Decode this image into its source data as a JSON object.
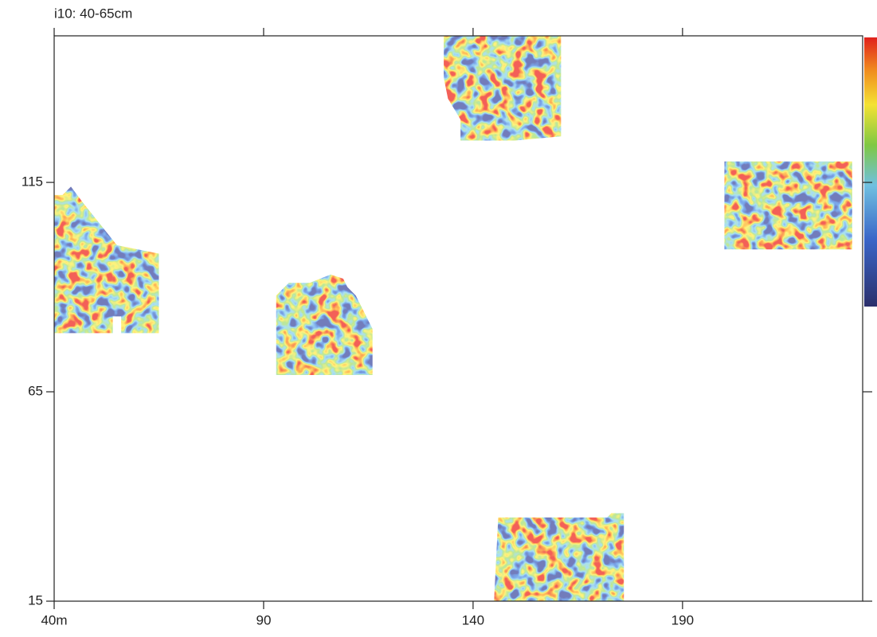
{
  "chart_data": {
    "type": "heatmap",
    "title": "i10: 40-65cm",
    "xlim": [
      40,
      233
    ],
    "ylim": [
      15,
      150
    ],
    "xticks": [
      {
        "value": 40,
        "label": "40m"
      },
      90,
      140,
      190
    ],
    "yticks": [
      15,
      65,
      115
    ],
    "areas": [
      {
        "x": [
          40,
          42,
          44,
          47,
          55,
          65,
          65,
          56,
          56,
          54,
          54,
          40
        ],
        "y": [
          112,
          112,
          114,
          110,
          100,
          98,
          79,
          79,
          83,
          83,
          79,
          79
        ]
      },
      {
        "x": [
          93,
          96,
          101,
          106,
          109,
          110,
          112,
          116,
          116,
          93
        ],
        "y": [
          88,
          91,
          91,
          93,
          92,
          90,
          88,
          80,
          69,
          69
        ]
      },
      {
        "x": [
          133,
          161,
          161,
          150,
          137,
          137,
          134,
          133
        ],
        "y": [
          150,
          150,
          126,
          125,
          125,
          130,
          135,
          140
        ]
      },
      {
        "x": [
          200,
          230.5,
          230.5,
          200
        ],
        "y": [
          120,
          120,
          99,
          99
        ]
      },
      {
        "x": [
          146,
          172,
          173,
          176,
          176,
          145
        ],
        "y": [
          35,
          35,
          36,
          36,
          15,
          15
        ]
      }
    ]
  }
}
